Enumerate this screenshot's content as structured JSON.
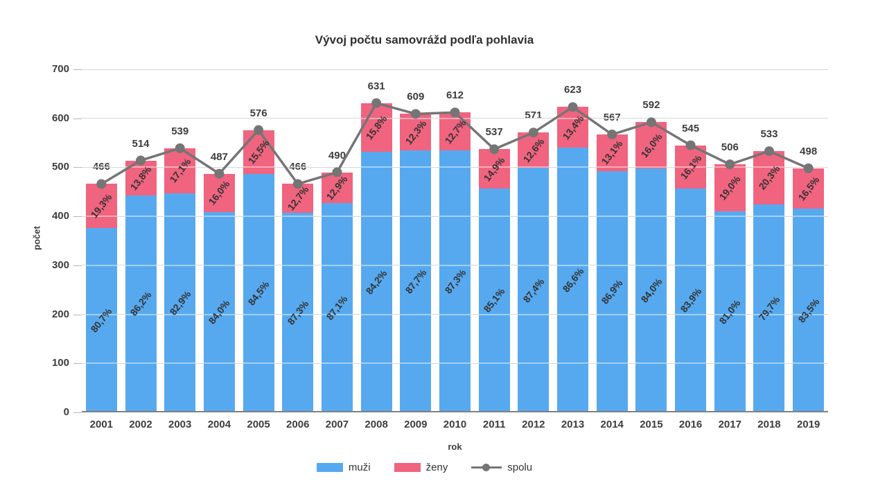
{
  "chart_data": {
    "type": "bar",
    "subtype": "stacked-bars-with-total-line",
    "title": "Vývoj počtu samovrážd podľa pohlavia",
    "xlabel": "rok",
    "ylabel": "počet",
    "ylim": [
      0,
      700
    ],
    "ytick_step": 100,
    "yticks": [
      0,
      100,
      200,
      300,
      400,
      500,
      600,
      700
    ],
    "grid": true,
    "legend_position": "bottom",
    "categories": [
      "2001",
      "2002",
      "2003",
      "2004",
      "2005",
      "2006",
      "2007",
      "2008",
      "2009",
      "2010",
      "2011",
      "2012",
      "2013",
      "2014",
      "2015",
      "2016",
      "2017",
      "2018",
      "2019"
    ],
    "series": [
      {
        "name": "muži",
        "role": "stacked-bar",
        "color": "#57a9ef",
        "pct": [
          80.7,
          86.2,
          82.9,
          84.0,
          84.5,
          87.3,
          87.1,
          84.2,
          87.7,
          87.3,
          85.1,
          87.4,
          86.6,
          86.9,
          84.0,
          83.9,
          81.0,
          79.7,
          83.5
        ]
      },
      {
        "name": "ženy",
        "role": "stacked-bar",
        "color": "#f0647f",
        "pct": [
          19.3,
          13.8,
          17.1,
          16.0,
          15.5,
          12.7,
          12.9,
          15.8,
          12.3,
          12.7,
          14.9,
          12.6,
          13.4,
          13.1,
          16.0,
          16.1,
          19.0,
          20.3,
          16.5
        ]
      },
      {
        "name": "spolu",
        "role": "line",
        "color": "#757575",
        "values": [
          466,
          514,
          539,
          487,
          576,
          466,
          490,
          631,
          609,
          612,
          537,
          571,
          623,
          567,
          592,
          545,
          506,
          533,
          498
        ]
      }
    ]
  }
}
